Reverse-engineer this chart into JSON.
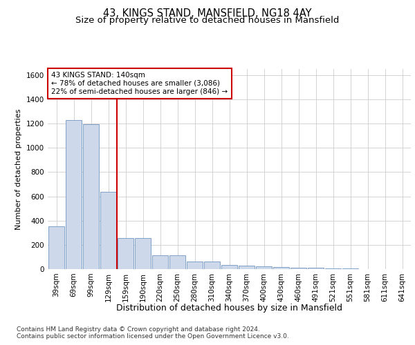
{
  "title": "43, KINGS STAND, MANSFIELD, NG18 4AY",
  "subtitle": "Size of property relative to detached houses in Mansfield",
  "xlabel": "Distribution of detached houses by size in Mansfield",
  "ylabel": "Number of detached properties",
  "categories": [
    "39sqm",
    "69sqm",
    "99sqm",
    "129sqm",
    "159sqm",
    "190sqm",
    "220sqm",
    "250sqm",
    "280sqm",
    "310sqm",
    "340sqm",
    "370sqm",
    "400sqm",
    "430sqm",
    "460sqm",
    "491sqm",
    "521sqm",
    "551sqm",
    "581sqm",
    "611sqm",
    "641sqm"
  ],
  "values": [
    350,
    1230,
    1195,
    640,
    258,
    258,
    115,
    115,
    65,
    65,
    35,
    28,
    20,
    15,
    10,
    10,
    5,
    3,
    0,
    0,
    0
  ],
  "bar_color": "#cdd9ea",
  "bar_edge_color": "#7094c0",
  "vline_color": "#cc0000",
  "annotation_text": "43 KINGS STAND: 140sqm\n← 78% of detached houses are smaller (3,086)\n22% of semi-detached houses are larger (846) →",
  "annotation_box_color": "#ffffff",
  "annotation_box_edge": "#cc0000",
  "ylim": [
    0,
    1650
  ],
  "yticks": [
    0,
    200,
    400,
    600,
    800,
    1000,
    1200,
    1400,
    1600
  ],
  "footer_text": "Contains HM Land Registry data © Crown copyright and database right 2024.\nContains public sector information licensed under the Open Government Licence v3.0.",
  "bg_color": "#ffffff",
  "grid_color": "#cccccc",
  "title_fontsize": 10.5,
  "subtitle_fontsize": 9.5,
  "xlabel_fontsize": 9,
  "ylabel_fontsize": 8,
  "tick_fontsize": 7.5,
  "annotation_fontsize": 7.5,
  "footer_fontsize": 6.5
}
